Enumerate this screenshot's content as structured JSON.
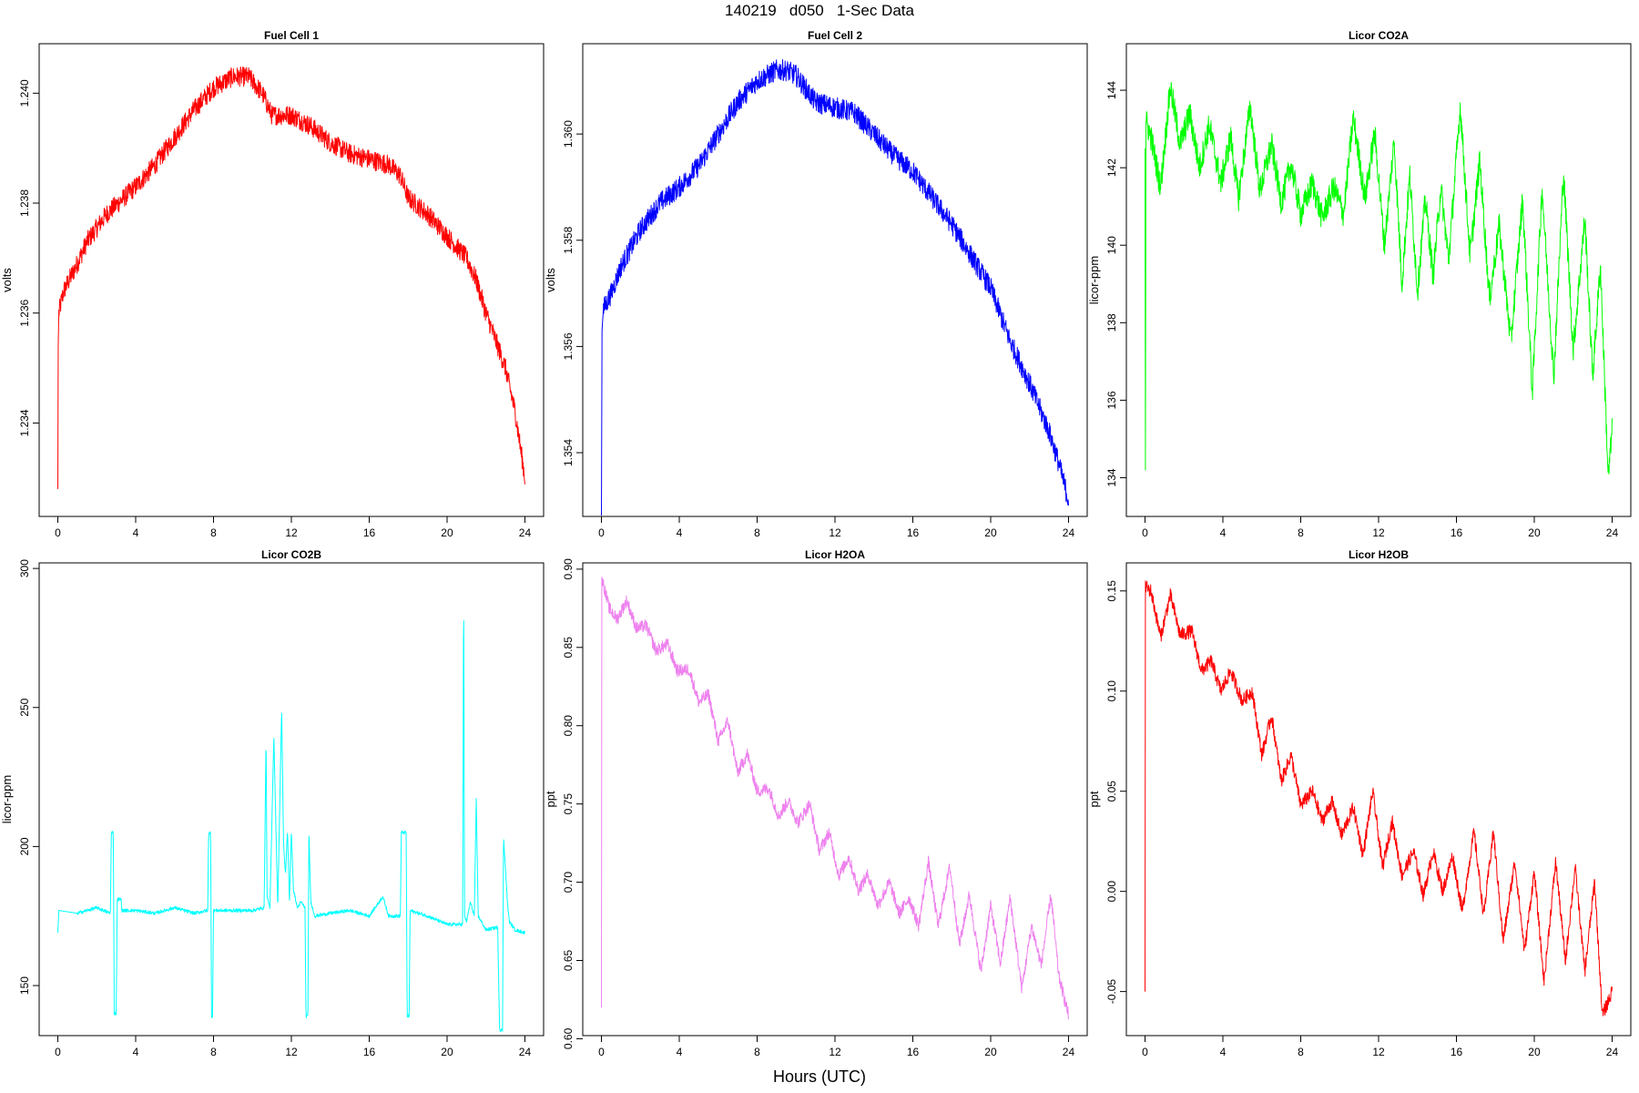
{
  "figure": {
    "title": "140219   d050   1-Sec Data",
    "xlabel": "Hours (UTC)"
  },
  "chart_data": [
    {
      "type": "line",
      "title": "Fuel Cell 1",
      "ylabel": "volts",
      "color": "#ff0000",
      "xlim": [
        -0.96,
        24.96
      ],
      "ylim": [
        1.2323,
        1.2409
      ],
      "xticks": [
        0,
        4,
        8,
        12,
        16,
        20,
        24
      ],
      "yticks": [
        1.234,
        1.236,
        1.238,
        1.24
      ],
      "ytick_labels": [
        "1.234",
        "1.236",
        "1.238",
        "1.240"
      ],
      "noise": 0.00018,
      "series": [
        {
          "x": [
            0,
            0.02,
            0.05,
            0.3,
            1,
            1.5,
            2.5,
            4,
            5,
            6,
            7,
            8,
            9,
            9.8,
            10.5,
            11,
            12,
            13,
            14,
            15,
            16,
            17,
            17.6,
            18,
            19,
            20,
            21,
            21.5,
            22,
            23,
            23.5,
            24
          ],
          "y": [
            1.2328,
            1.2354,
            1.236,
            1.2364,
            1.2369,
            1.2373,
            1.2378,
            1.2383,
            1.2387,
            1.2392,
            1.2397,
            1.2401,
            1.2403,
            1.2403,
            1.24,
            1.2396,
            1.2396,
            1.2394,
            1.2391,
            1.2389,
            1.2388,
            1.2387,
            1.2385,
            1.2381,
            1.2378,
            1.2374,
            1.237,
            1.2366,
            1.236,
            1.235,
            1.2342,
            1.233
          ]
        }
      ]
    },
    {
      "type": "line",
      "title": "Fuel Cell 2",
      "ylabel": "volts",
      "color": "#0000ff",
      "xlim": [
        -0.96,
        24.96
      ],
      "ylim": [
        1.3528,
        1.3617
      ],
      "xticks": [
        0,
        4,
        8,
        12,
        16,
        20,
        24
      ],
      "yticks": [
        1.354,
        1.356,
        1.358,
        1.36
      ],
      "ytick_labels": [
        "1.354",
        "1.356",
        "1.358",
        "1.360"
      ],
      "noise": 0.0002,
      "series": [
        {
          "x": [
            0,
            0.03,
            0.1,
            0.5,
            1,
            2,
            3,
            4,
            5,
            6,
            7,
            8,
            9,
            9.5,
            10,
            11,
            12,
            13,
            14,
            15,
            16,
            17,
            18,
            19,
            20,
            21,
            22,
            23,
            23.5,
            24
          ],
          "y": [
            1.3528,
            1.3563,
            1.3567,
            1.357,
            1.3575,
            1.3582,
            1.3587,
            1.359,
            1.3594,
            1.36,
            1.3606,
            1.361,
            1.3612,
            1.3612,
            1.3611,
            1.3606,
            1.3605,
            1.3604,
            1.36,
            1.3596,
            1.3593,
            1.3588,
            1.3583,
            1.3577,
            1.3571,
            1.3561,
            1.3553,
            1.3544,
            1.3538,
            1.3531
          ]
        }
      ]
    },
    {
      "type": "line",
      "title": "Licor CO2A",
      "ylabel": "licor-ppm",
      "color": "#00ff00",
      "xlim": [
        -0.96,
        24.96
      ],
      "ylim": [
        133.0,
        145.2
      ],
      "xticks": [
        0,
        4,
        8,
        12,
        16,
        20,
        24
      ],
      "yticks": [
        134,
        136,
        138,
        140,
        142,
        144
      ],
      "ytick_labels": [
        "134",
        "136",
        "138",
        "140",
        "142",
        "144"
      ],
      "noise": 0.35,
      "series": [
        {
          "x": [
            0,
            0.02,
            0.05,
            0.3,
            0.8,
            1.3,
            1.8,
            2.3,
            2.8,
            3.3,
            3.9,
            4.4,
            4.8,
            5.4,
            5.9,
            6.5,
            7.0,
            7.5,
            8.0,
            8.6,
            9.1,
            9.7,
            10.2,
            10.7,
            11.3,
            11.8,
            12.3,
            12.8,
            13.2,
            13.6,
            14.0,
            14.4,
            14.8,
            15.2,
            15.6,
            16.2,
            16.7,
            17.2,
            17.7,
            18.2,
            18.8,
            19.4,
            19.9,
            20.4,
            21.0,
            21.5,
            22.0,
            22.6,
            23.0,
            23.4,
            23.8,
            24
          ],
          "y": [
            142.5,
            134.2,
            143.2,
            142.8,
            141.5,
            144.1,
            142.6,
            143.4,
            142.0,
            143.1,
            141.6,
            142.8,
            141.2,
            143.6,
            141.4,
            142.6,
            141.1,
            142.1,
            140.8,
            141.6,
            140.7,
            141.5,
            140.8,
            143.3,
            141.2,
            142.9,
            140.0,
            142.7,
            139.0,
            141.8,
            138.8,
            141.2,
            139.2,
            141.5,
            139.6,
            143.6,
            139.7,
            142.2,
            138.6,
            140.5,
            137.5,
            141.2,
            136.2,
            141.5,
            136.6,
            141.9,
            137.3,
            140.7,
            136.6,
            139.5,
            134.0,
            135.2
          ]
        }
      ]
    },
    {
      "type": "line",
      "title": "Licor CO2B",
      "ylabel": "licor-ppm",
      "color": "#00ffff",
      "xlim": [
        -0.96,
        24.96
      ],
      "ylim": [
        132.0,
        302.0
      ],
      "xticks": [
        0,
        4,
        8,
        12,
        16,
        20,
        24
      ],
      "yticks": [
        150,
        200,
        250,
        300
      ],
      "ytick_labels": [
        "150",
        "200",
        "250",
        "300"
      ],
      "noise": 0.6,
      "series": [
        {
          "x": [
            0,
            0.05,
            1,
            2,
            2.7,
            2.75,
            2.85,
            2.9,
            3.0,
            3.05,
            3.25,
            3.3,
            4,
            5,
            6,
            7,
            7.7,
            7.75,
            7.85,
            7.9,
            7.95,
            8.0,
            9,
            10,
            10.6,
            10.7,
            10.75,
            10.9,
            11.1,
            11.3,
            11.5,
            11.6,
            11.7,
            11.8,
            11.9,
            12.0,
            12.1,
            12.3,
            12.5,
            12.7,
            12.75,
            12.85,
            12.9,
            13.0,
            13.2,
            14,
            15,
            16,
            16.5,
            16.7,
            17,
            17.6,
            17.65,
            17.9,
            17.95,
            18.05,
            18.1,
            19,
            20,
            20.8,
            20.85,
            20.9,
            21.0,
            21.2,
            21.4,
            21.5,
            21.6,
            22,
            22.6,
            22.7,
            22.85,
            22.9,
            23.1,
            23.2,
            23.5,
            24
          ],
          "y": [
            169,
            177,
            176,
            178,
            176,
            205,
            205,
            140,
            140,
            181,
            181,
            177,
            177,
            176,
            178,
            176,
            177,
            205,
            205,
            139,
            139,
            177,
            177,
            177,
            178,
            240,
            182,
            178,
            240,
            178,
            250,
            200,
            190,
            206,
            180,
            206,
            185,
            178,
            180,
            178,
            139,
            139,
            205,
            180,
            175,
            176,
            177,
            175,
            180,
            182,
            175,
            175,
            205,
            205,
            139,
            139,
            177,
            175,
            172,
            172,
            297,
            175,
            173,
            180,
            175,
            217,
            175,
            170,
            171,
            134,
            134,
            204,
            180,
            173,
            170,
            169
          ]
        }
      ]
    },
    {
      "type": "line",
      "title": "Licor H2OA",
      "ylabel": "ppt",
      "color": "#ee82ee",
      "xlim": [
        -0.96,
        24.96
      ],
      "ylim": [
        0.602,
        0.904
      ],
      "xticks": [
        0,
        4,
        8,
        12,
        16,
        20,
        24
      ],
      "yticks": [
        0.6,
        0.65,
        0.7,
        0.75,
        0.8,
        0.85,
        0.9
      ],
      "ytick_labels": [
        "0.60",
        "0.65",
        "0.70",
        "0.75",
        "0.80",
        "0.85",
        "0.90"
      ],
      "noise": 0.004,
      "series": [
        {
          "x": [
            0,
            0.02,
            0.05,
            0.4,
            0.8,
            1.3,
            1.8,
            2.3,
            2.8,
            3.4,
            3.9,
            4.5,
            5.0,
            5.5,
            6.0,
            6.5,
            7.0,
            7.5,
            8.0,
            8.6,
            9.1,
            9.6,
            10.1,
            10.7,
            11.2,
            11.7,
            12.2,
            12.7,
            13.2,
            13.7,
            14.2,
            14.8,
            15.3,
            15.8,
            16.3,
            16.8,
            17.3,
            17.9,
            18.4,
            18.9,
            19.5,
            20.0,
            20.5,
            21.0,
            21.6,
            22.1,
            22.6,
            23.1,
            23.5,
            24
          ],
          "y": [
            0.62,
            0.895,
            0.893,
            0.875,
            0.868,
            0.88,
            0.862,
            0.864,
            0.848,
            0.852,
            0.835,
            0.836,
            0.815,
            0.82,
            0.79,
            0.803,
            0.77,
            0.782,
            0.758,
            0.76,
            0.742,
            0.752,
            0.738,
            0.75,
            0.72,
            0.732,
            0.704,
            0.716,
            0.695,
            0.705,
            0.685,
            0.7,
            0.68,
            0.69,
            0.672,
            0.713,
            0.672,
            0.71,
            0.66,
            0.692,
            0.643,
            0.685,
            0.648,
            0.69,
            0.632,
            0.672,
            0.647,
            0.692,
            0.64,
            0.615
          ]
        }
      ]
    },
    {
      "type": "line",
      "title": "Licor H2OB",
      "ylabel": "ppt",
      "color": "#ff0000",
      "xlim": [
        -0.96,
        24.96
      ],
      "ylim": [
        -0.072,
        0.164
      ],
      "xticks": [
        0,
        4,
        8,
        12,
        16,
        20,
        24
      ],
      "yticks": [
        -0.05,
        0.0,
        0.05,
        0.1,
        0.15
      ],
      "ytick_labels": [
        "-0.05",
        "0.00",
        "0.05",
        "0.10",
        "0.15"
      ],
      "noise": 0.0035,
      "series": [
        {
          "x": [
            0,
            0.02,
            0.05,
            0.3,
            0.8,
            1.3,
            1.8,
            2.4,
            2.9,
            3.4,
            3.9,
            4.4,
            5.0,
            5.5,
            6.0,
            6.5,
            7.0,
            7.5,
            8.0,
            8.6,
            9.1,
            9.6,
            10.1,
            10.7,
            11.2,
            11.7,
            12.2,
            12.7,
            13.2,
            13.8,
            14.3,
            14.8,
            15.3,
            15.8,
            16.3,
            16.9,
            17.4,
            17.9,
            18.4,
            19.0,
            19.5,
            20.0,
            20.5,
            21.1,
            21.6,
            22.1,
            22.6,
            23.1,
            23.5,
            24
          ],
          "y": [
            -0.05,
            0.155,
            0.152,
            0.15,
            0.127,
            0.148,
            0.128,
            0.13,
            0.11,
            0.115,
            0.1,
            0.11,
            0.095,
            0.1,
            0.068,
            0.088,
            0.055,
            0.068,
            0.043,
            0.05,
            0.035,
            0.045,
            0.028,
            0.042,
            0.018,
            0.05,
            0.012,
            0.035,
            0.008,
            0.02,
            -0.002,
            0.02,
            0.0,
            0.018,
            -0.01,
            0.03,
            -0.012,
            0.03,
            -0.025,
            0.015,
            -0.03,
            0.01,
            -0.045,
            0.015,
            -0.035,
            0.012,
            -0.04,
            0.005,
            -0.062,
            -0.05
          ]
        }
      ]
    }
  ]
}
